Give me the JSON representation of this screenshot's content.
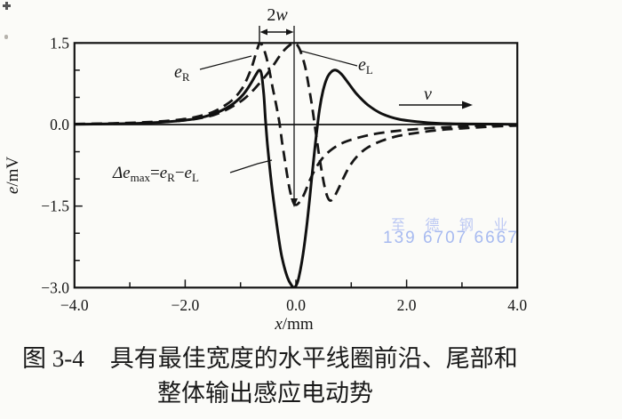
{
  "figure": {
    "caption_fig_no": "图 3-4",
    "caption_line1": "具有最佳宽度的水平线圈前沿、尾部和",
    "caption_line2": "整体输出感应电动势"
  },
  "watermark": {
    "line1": "至 德 钢 业",
    "line2": "139 6707 6667",
    "color": "#a7baf0"
  },
  "labels": {
    "gap": {
      "num": "2",
      "var": "w"
    },
    "er": {
      "base": "e",
      "sub": "R"
    },
    "el": {
      "base": "e",
      "sub": "L"
    },
    "delta": {
      "d_base": "Δe",
      "d_sub": "max",
      "eq": "=",
      "a_base": "e",
      "a_sub": "R",
      "minus": "−",
      "b_base": "e",
      "b_sub": "L"
    },
    "velocity": "v"
  },
  "axes": {
    "y_title_var": "e",
    "y_title_unit": "/mV",
    "x_title_var": "x",
    "x_title_unit": "/mm"
  },
  "chart_data": {
    "type": "line",
    "title": "",
    "xlabel": "x/mm",
    "ylabel": "e/mV",
    "xlim": [
      -4.0,
      4.0
    ],
    "ylim": [
      -3.0,
      1.5
    ],
    "grid": false,
    "legend_position": "none",
    "x_ticks": [
      {
        "v": -4.0,
        "label": "−4.0"
      },
      {
        "v": -2.0,
        "label": "−2.0"
      },
      {
        "v": 0.0,
        "label": "0.0"
      },
      {
        "v": 2.0,
        "label": "2.0"
      },
      {
        "v": 4.0,
        "label": "4.0"
      }
    ],
    "x_ticks_minor": [
      -3.0,
      -1.0,
      1.0,
      3.0
    ],
    "y_ticks": [
      {
        "v": 1.5,
        "label": "1.5"
      },
      {
        "v": 0.0,
        "label": "0.0"
      },
      {
        "v": -1.5,
        "label": "−1.5"
      },
      {
        "v": -3.0,
        "label": "−3.0"
      }
    ],
    "y_ticks_minor": [
      1.0,
      0.5,
      -0.5,
      -1.0,
      -2.0,
      -2.5
    ],
    "annotations": [
      {
        "text": "2w",
        "meaning": "coil half-spacing marker between x=-0.66 and x=0 at top"
      },
      {
        "text": "eR",
        "meaning": "label of right-coil EMF dashed curve, peak 1.5 mV at x≈-0.66 mm"
      },
      {
        "text": "eL",
        "meaning": "label of left-coil EMF dashed curve, peak 1.5 mV at x≈0 mm"
      },
      {
        "text": "Δemax=eR−eL",
        "meaning": "label of solid differential curve, minimum −3.0 mV at x≈0"
      },
      {
        "text": "v",
        "meaning": "scan velocity arrow pointing right"
      }
    ],
    "series": [
      {
        "name": "e_R",
        "style": "dashed",
        "points": [
          [
            -4,
            0.01
          ],
          [
            -3.4,
            0.02
          ],
          [
            -2.9,
            0.035
          ],
          [
            -2.5,
            0.055
          ],
          [
            -2.1,
            0.09
          ],
          [
            -1.8,
            0.14
          ],
          [
            -1.5,
            0.23
          ],
          [
            -1.3,
            0.34
          ],
          [
            -1.15,
            0.45
          ],
          [
            -1.0,
            0.62
          ],
          [
            -0.9,
            0.8
          ],
          [
            -0.8,
            1.05
          ],
          [
            -0.73,
            1.28
          ],
          [
            -0.68,
            1.44
          ],
          [
            -0.65,
            1.5
          ],
          [
            -0.6,
            1.44
          ],
          [
            -0.54,
            1.26
          ],
          [
            -0.48,
            1.0
          ],
          [
            -0.42,
            0.68
          ],
          [
            -0.36,
            0.38
          ],
          [
            -0.3,
            0.05
          ],
          [
            -0.25,
            -0.32
          ],
          [
            -0.2,
            -0.65
          ],
          [
            -0.15,
            -0.98
          ],
          [
            -0.1,
            -1.25
          ],
          [
            -0.05,
            -1.42
          ],
          [
            0.0,
            -1.48
          ],
          [
            0.07,
            -1.42
          ],
          [
            0.15,
            -1.28
          ],
          [
            0.24,
            -1.05
          ],
          [
            0.35,
            -0.82
          ],
          [
            0.48,
            -0.62
          ],
          [
            0.62,
            -0.48
          ],
          [
            0.8,
            -0.36
          ],
          [
            1.0,
            -0.28
          ],
          [
            1.25,
            -0.21
          ],
          [
            1.5,
            -0.16
          ],
          [
            1.8,
            -0.12
          ],
          [
            2.1,
            -0.09
          ],
          [
            2.5,
            -0.06
          ],
          [
            2.9,
            -0.04
          ],
          [
            3.4,
            -0.02
          ],
          [
            4,
            -0.01
          ]
        ]
      },
      {
        "name": "e_L",
        "style": "dashed",
        "points": [
          [
            -4,
            0.008
          ],
          [
            -3.4,
            0.015
          ],
          [
            -2.9,
            0.027
          ],
          [
            -2.5,
            0.042
          ],
          [
            -2.1,
            0.068
          ],
          [
            -1.8,
            0.105
          ],
          [
            -1.5,
            0.17
          ],
          [
            -1.3,
            0.25
          ],
          [
            -1.1,
            0.36
          ],
          [
            -0.95,
            0.46
          ],
          [
            -0.8,
            0.6
          ],
          [
            -0.65,
            0.77
          ],
          [
            -0.52,
            0.93
          ],
          [
            -0.4,
            1.1
          ],
          [
            -0.3,
            1.25
          ],
          [
            -0.2,
            1.38
          ],
          [
            -0.1,
            1.47
          ],
          [
            -0.03,
            1.5
          ],
          [
            0.04,
            1.44
          ],
          [
            0.1,
            1.3
          ],
          [
            0.17,
            1.05
          ],
          [
            0.23,
            0.72
          ],
          [
            0.29,
            0.35
          ],
          [
            0.35,
            -0.08
          ],
          [
            0.41,
            -0.5
          ],
          [
            0.47,
            -0.88
          ],
          [
            0.52,
            -1.15
          ],
          [
            0.57,
            -1.33
          ],
          [
            0.62,
            -1.4
          ],
          [
            0.68,
            -1.35
          ],
          [
            0.76,
            -1.2
          ],
          [
            0.86,
            -0.98
          ],
          [
            0.98,
            -0.75
          ],
          [
            1.12,
            -0.57
          ],
          [
            1.3,
            -0.42
          ],
          [
            1.55,
            -0.3
          ],
          [
            1.85,
            -0.21
          ],
          [
            2.2,
            -0.15
          ],
          [
            2.6,
            -0.1
          ],
          [
            3.0,
            -0.07
          ],
          [
            3.5,
            -0.04
          ],
          [
            4,
            -0.02
          ]
        ]
      },
      {
        "name": "delta_e",
        "style": "solid",
        "points": [
          [
            -4,
            0.005
          ],
          [
            -3.4,
            0.012
          ],
          [
            -2.9,
            0.022
          ],
          [
            -2.5,
            0.04
          ],
          [
            -2.1,
            0.07
          ],
          [
            -1.8,
            0.11
          ],
          [
            -1.5,
            0.19
          ],
          [
            -1.3,
            0.28
          ],
          [
            -1.15,
            0.37
          ],
          [
            -1.0,
            0.5
          ],
          [
            -0.9,
            0.62
          ],
          [
            -0.8,
            0.78
          ],
          [
            -0.72,
            0.92
          ],
          [
            -0.66,
            1.0
          ],
          [
            -0.62,
            0.92
          ],
          [
            -0.58,
            0.55
          ],
          [
            -0.55,
            0.1
          ],
          [
            -0.52,
            -0.3
          ],
          [
            -0.48,
            -0.72
          ],
          [
            -0.44,
            -1.1
          ],
          [
            -0.39,
            -1.5
          ],
          [
            -0.33,
            -1.95
          ],
          [
            -0.27,
            -2.35
          ],
          [
            -0.21,
            -2.62
          ],
          [
            -0.15,
            -2.82
          ],
          [
            -0.09,
            -2.94
          ],
          [
            -0.03,
            -3.0
          ],
          [
            0.03,
            -2.9
          ],
          [
            0.08,
            -2.68
          ],
          [
            0.13,
            -2.38
          ],
          [
            0.18,
            -2.0
          ],
          [
            0.23,
            -1.55
          ],
          [
            0.28,
            -1.05
          ],
          [
            0.33,
            -0.55
          ],
          [
            0.38,
            -0.1
          ],
          [
            0.43,
            0.3
          ],
          [
            0.49,
            0.62
          ],
          [
            0.56,
            0.85
          ],
          [
            0.64,
            0.97
          ],
          [
            0.72,
            1.0
          ],
          [
            0.82,
            0.93
          ],
          [
            0.95,
            0.76
          ],
          [
            1.1,
            0.56
          ],
          [
            1.3,
            0.36
          ],
          [
            1.55,
            0.2
          ],
          [
            1.85,
            0.1
          ],
          [
            2.2,
            0.05
          ],
          [
            2.6,
            0.02
          ],
          [
            3.2,
            0.01
          ],
          [
            4,
            0.005
          ]
        ]
      }
    ]
  }
}
